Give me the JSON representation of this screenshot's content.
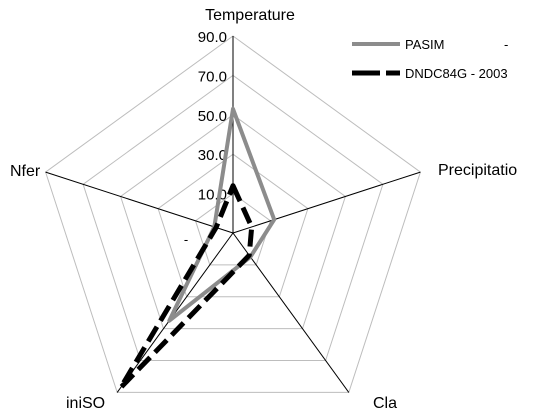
{
  "chart_data": {
    "type": "radar",
    "title": "",
    "axes": [
      "Temperature",
      "Precipitatio",
      "Cla",
      "iniSO",
      "Nfer"
    ],
    "ticks": [
      "-",
      "10.0",
      "30.0",
      "50.0",
      "70.0",
      "90.0"
    ],
    "range": [
      -10,
      90
    ],
    "grid": true,
    "legend_position": "top-right",
    "series": [
      {
        "name": "PASIM",
        "suffix": "-",
        "color": "#8c8c8c",
        "dash": "solid",
        "values": [
          53,
          12,
          5,
          45,
          0
        ]
      },
      {
        "name": "DNDC84G - 2003",
        "suffix": "",
        "color": "#000000",
        "dash": "dashed",
        "values": [
          14,
          0,
          4,
          87,
          -1
        ]
      }
    ]
  }
}
